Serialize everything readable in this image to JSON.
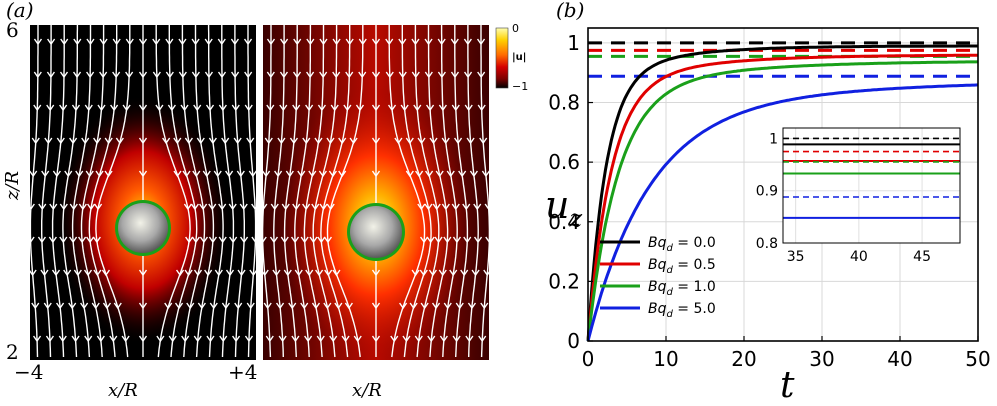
{
  "panel_a": {
    "label": "(a)",
    "ylabel": "z/R",
    "xlabel_left": "x/R",
    "xlabel_right": "x/R",
    "y_top": "6",
    "y_bottom": "2",
    "x_left": "−4",
    "x_right": "+4",
    "colorbar": {
      "label": "|u|",
      "top": "0",
      "bottom": "−1",
      "colors": [
        "#ffffb0",
        "#ffd000",
        "#ff6a00",
        "#d40000",
        "#7a0000",
        "#000000"
      ]
    }
  },
  "panel_b": {
    "label": "(b)",
    "xlabel": "t",
    "ylabel": "u_z",
    "ylabel_main": "u",
    "ylabel_sub": "z"
  },
  "chart_data": {
    "type": "line",
    "title": "",
    "xlabel": "t",
    "ylabel": "u_z",
    "xlim": [
      0,
      50
    ],
    "ylim": [
      0,
      1.05
    ],
    "xticks": [
      0,
      10,
      20,
      30,
      40,
      50
    ],
    "yticks": [
      0,
      0.2,
      0.4,
      0.6,
      0.8,
      1
    ],
    "ytick_labels": [
      "0",
      "0.2",
      "0.4",
      "0.6",
      "0.8",
      "1"
    ],
    "grid": true,
    "legend_position": "bottom-left",
    "series": [
      {
        "name": "Bq_d = 0.0",
        "legend_prefix": "Bq",
        "legend_sub": "d",
        "legend_value": " = 0.0",
        "color": "#000000",
        "steady": 0.99,
        "tau": 2.2,
        "dashed_level": 1.0
      },
      {
        "name": "Bq_d = 0.5",
        "legend_prefix": "Bq",
        "legend_sub": "d",
        "legend_value": " = 0.5",
        "color": "#e00000",
        "steady": 0.96,
        "tau": 2.8,
        "dashed_level": 0.975
      },
      {
        "name": "Bq_d = 1.0",
        "legend_prefix": "Bq",
        "legend_sub": "d",
        "legend_value": " = 1.0",
        "color": "#1aa01a",
        "steady": 0.94,
        "tau": 3.6,
        "dashed_level": 0.955
      },
      {
        "name": "Bq_d = 5.0",
        "legend_prefix": "Bq",
        "legend_sub": "d",
        "legend_value": " = 5.0",
        "color": "#1020e0",
        "steady": 0.88,
        "tau": 7.5,
        "dashed_level": 0.888
      }
    ],
    "inset": {
      "xlim": [
        34,
        48
      ],
      "ylim": [
        0.8,
        1.02
      ],
      "xticks": [
        35,
        40,
        45
      ],
      "yticks": [
        0.8,
        0.9,
        1
      ],
      "ytick_labels": [
        "0.8",
        "0.9",
        "1"
      ]
    }
  }
}
